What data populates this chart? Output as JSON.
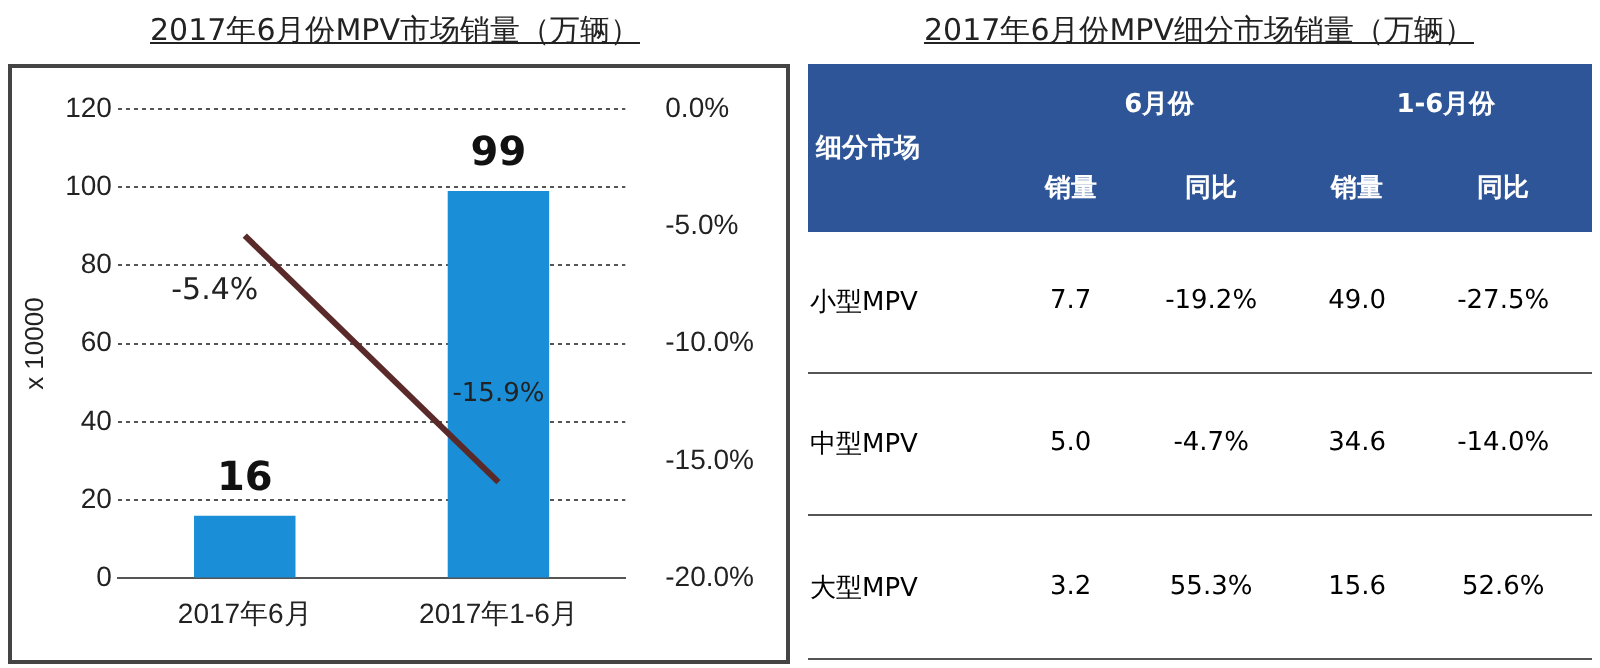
{
  "chart_data": [
    {
      "type": "bar",
      "title": "2017年6月份MPV市场销量（万辆）",
      "ylabel": "x 10000",
      "categories": [
        "2017年6月",
        "2017年1-6月"
      ],
      "series": [
        {
          "type": "bar",
          "color": "#1a8fd8",
          "values": [
            16,
            99
          ],
          "value_labels": [
            "16",
            "99"
          ]
        },
        {
          "type": "line",
          "axis": "y2",
          "color": "#5a2a2a",
          "values": [
            -5.4,
            -15.9
          ],
          "value_labels": [
            "-5.4%",
            "-15.9%"
          ]
        }
      ],
      "ylim": [
        0,
        120
      ],
      "yticks": [
        0,
        20,
        40,
        60,
        80,
        100,
        120
      ],
      "y2lim": [
        -20,
        0
      ],
      "y2ticks": [
        {
          "value": -20,
          "label": "-20.0%"
        },
        {
          "value": -15,
          "label": "-15.0%"
        },
        {
          "value": -10,
          "label": "-10.0%"
        },
        {
          "value": -5,
          "label": "-5.0%"
        },
        {
          "value": 0,
          "label": "0.0%"
        }
      ],
      "grid": "y"
    },
    {
      "type": "other",
      "title": "2017年6月份MPV细分市场销量（万辆）",
      "annotations": [
        "细分市场",
        "6月份",
        "1-6月份"
      ],
      "categories": [
        "小型MPV",
        "中型MPV",
        "大型MPV"
      ],
      "series": [
        {
          "name": "销量",
          "values": [
            7.7,
            5.0,
            3.2
          ],
          "value_labels": [
            "7.7",
            "5.0",
            "3.2"
          ]
        },
        {
          "name": "同比",
          "values": [
            -19.2,
            -4.7,
            55.3
          ],
          "value_labels": [
            "-19.2%",
            "-4.7%",
            "55.3%"
          ]
        },
        {
          "name": "销量",
          "values": [
            49.0,
            34.6,
            15.6
          ],
          "value_labels": [
            "49.0",
            "34.6",
            "15.6"
          ]
        },
        {
          "name": "同比",
          "values": [
            -27.5,
            -14.0,
            52.6
          ],
          "value_labels": [
            "-27.5%",
            "-14.0%",
            "52.6%"
          ]
        }
      ]
    }
  ]
}
